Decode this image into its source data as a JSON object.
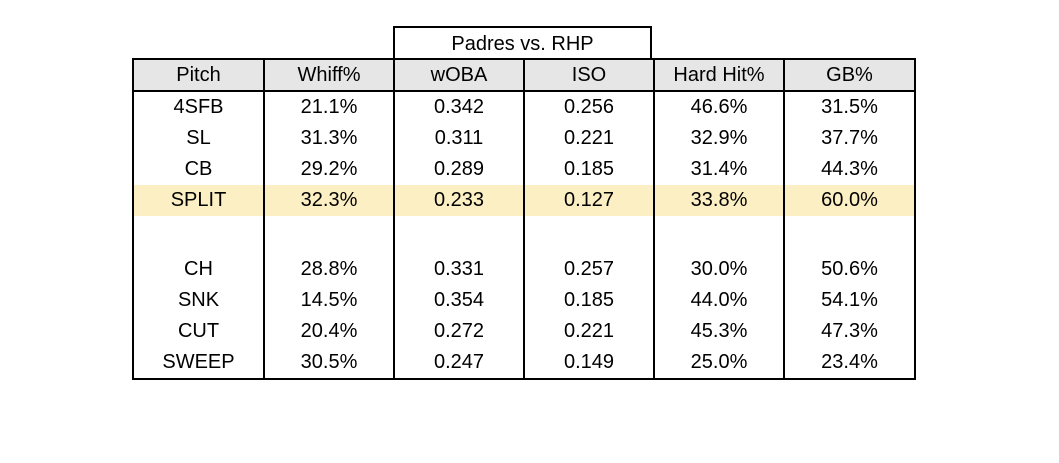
{
  "chart_data": {
    "type": "table",
    "title": "Padres vs. RHP",
    "columns": [
      "Pitch",
      "Whiff%",
      "wOBA",
      "ISO",
      "Hard Hit%",
      "GB%"
    ],
    "rows": [
      [
        "4SFB",
        "21.1%",
        "0.342",
        "0.256",
        "46.6%",
        "31.5%"
      ],
      [
        "SL",
        "31.3%",
        "0.311",
        "0.221",
        "32.9%",
        "37.7%"
      ],
      [
        "CB",
        "29.2%",
        "0.289",
        "0.185",
        "31.4%",
        "44.3%"
      ],
      [
        "SPLIT",
        "32.3%",
        "0.233",
        "0.127",
        "33.8%",
        "60.0%"
      ],
      [
        "",
        "",
        "",
        "",
        "",
        ""
      ],
      [
        "CH",
        "28.8%",
        "0.331",
        "0.257",
        "30.0%",
        "50.6%"
      ],
      [
        "SNK",
        "14.5%",
        "0.354",
        "0.185",
        "44.0%",
        "54.1%"
      ],
      [
        "CUT",
        "20.4%",
        "0.272",
        "0.221",
        "45.3%",
        "47.3%"
      ],
      [
        "SWEEP",
        "30.5%",
        "0.247",
        "0.149",
        "25.0%",
        "23.4%"
      ]
    ],
    "highlighted_row": "SPLIT",
    "colors": {
      "header_bg": "#e6e6e6",
      "highlight_bg": "#fcefc4",
      "border": "#000000"
    }
  }
}
